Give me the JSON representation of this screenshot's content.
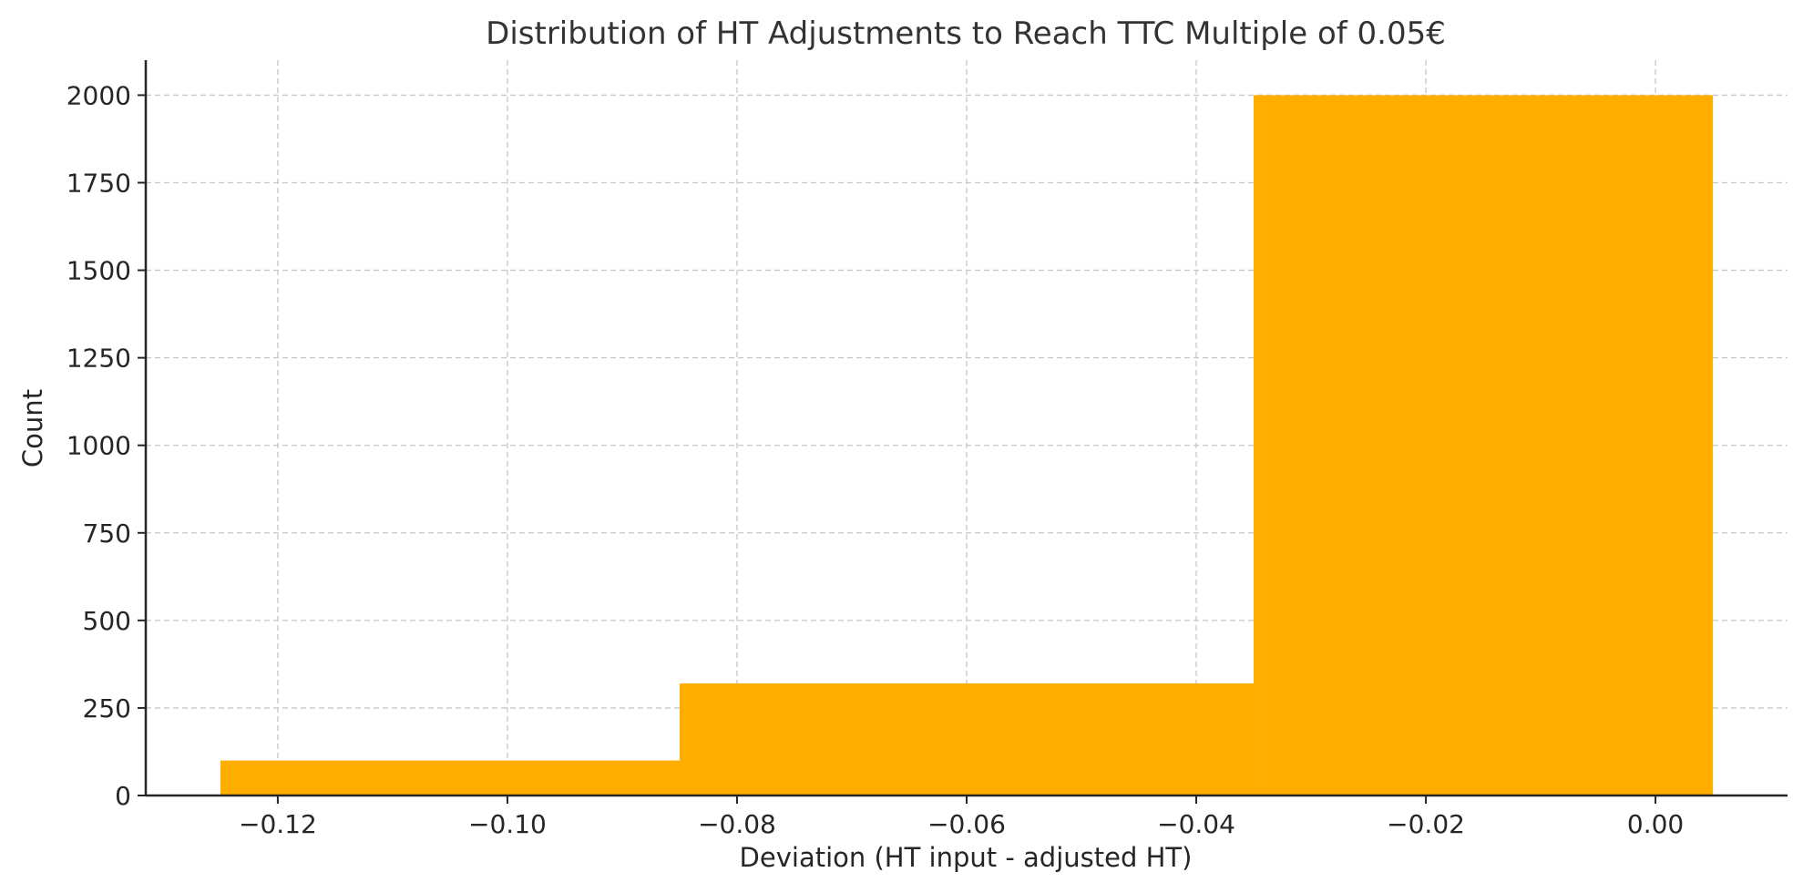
{
  "chart_data": {
    "type": "bar",
    "title": "Distribution of HT Adjustments to Reach TTC Multiple of 0.05€",
    "xlabel": "Deviation (HT input - adjusted HT)",
    "ylabel": "Count",
    "xlim": [
      -0.1315,
      0.0115
    ],
    "ylim": [
      0,
      2100
    ],
    "bar_color": "#FFAE00",
    "grid": true,
    "bins": [
      {
        "x0": -0.125,
        "x1": -0.085,
        "value": 100
      },
      {
        "x0": -0.085,
        "x1": -0.035,
        "value": 320
      },
      {
        "x0": -0.035,
        "x1": 0.005,
        "value": 2000
      }
    ],
    "x_ticks": [
      {
        "value": -0.12,
        "label": "−0.12"
      },
      {
        "value": -0.1,
        "label": "−0.10"
      },
      {
        "value": -0.08,
        "label": "−0.08"
      },
      {
        "value": -0.06,
        "label": "−0.06"
      },
      {
        "value": -0.04,
        "label": "−0.04"
      },
      {
        "value": -0.02,
        "label": "−0.02"
      },
      {
        "value": 0.0,
        "label": "0.00"
      }
    ],
    "y_ticks": [
      {
        "value": 0,
        "label": "0"
      },
      {
        "value": 250,
        "label": "250"
      },
      {
        "value": 500,
        "label": "500"
      },
      {
        "value": 750,
        "label": "750"
      },
      {
        "value": 1000,
        "label": "1000"
      },
      {
        "value": 1250,
        "label": "1250"
      },
      {
        "value": 1500,
        "label": "1500"
      },
      {
        "value": 1750,
        "label": "1750"
      },
      {
        "value": 2000,
        "label": "2000"
      }
    ]
  }
}
